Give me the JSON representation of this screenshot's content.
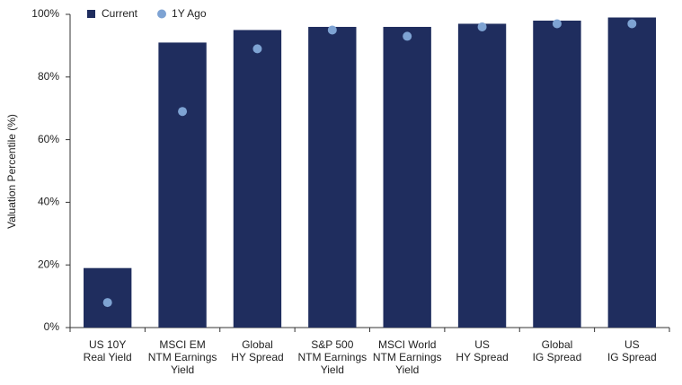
{
  "chart_data": {
    "type": "bar",
    "y_label": "Valuation Percentile (%)",
    "categories": [
      "US 10Y\nReal Yield",
      "MSCI EM\nNTM Earnings\nYield",
      "Global\nHY Spread",
      "S&P 500\nNTM Earnings\nYield",
      "MSCI World\nNTM Earnings\nYield",
      "US\nHY Spread",
      "Global\nIG Spread",
      "US\nIG Spread"
    ],
    "series": [
      {
        "name": "Current",
        "type": "bar",
        "color": "#1f2d5e",
        "values": [
          19,
          91,
          95,
          96,
          96,
          97,
          98,
          99
        ]
      },
      {
        "name": "1Y Ago",
        "type": "scatter",
        "color": "#7ea3d3",
        "values": [
          8,
          69,
          89,
          95,
          93,
          96,
          97,
          97
        ]
      }
    ],
    "ylim": [
      0,
      100
    ],
    "yticks": [
      {
        "value": 0,
        "label": "0%"
      },
      {
        "value": 20,
        "label": "20%"
      },
      {
        "value": 40,
        "label": "40%"
      },
      {
        "value": 60,
        "label": "60%"
      },
      {
        "value": 80,
        "label": "80%"
      },
      {
        "value": 100,
        "label": "100%"
      }
    ],
    "grid": false,
    "legend": "top-left"
  }
}
